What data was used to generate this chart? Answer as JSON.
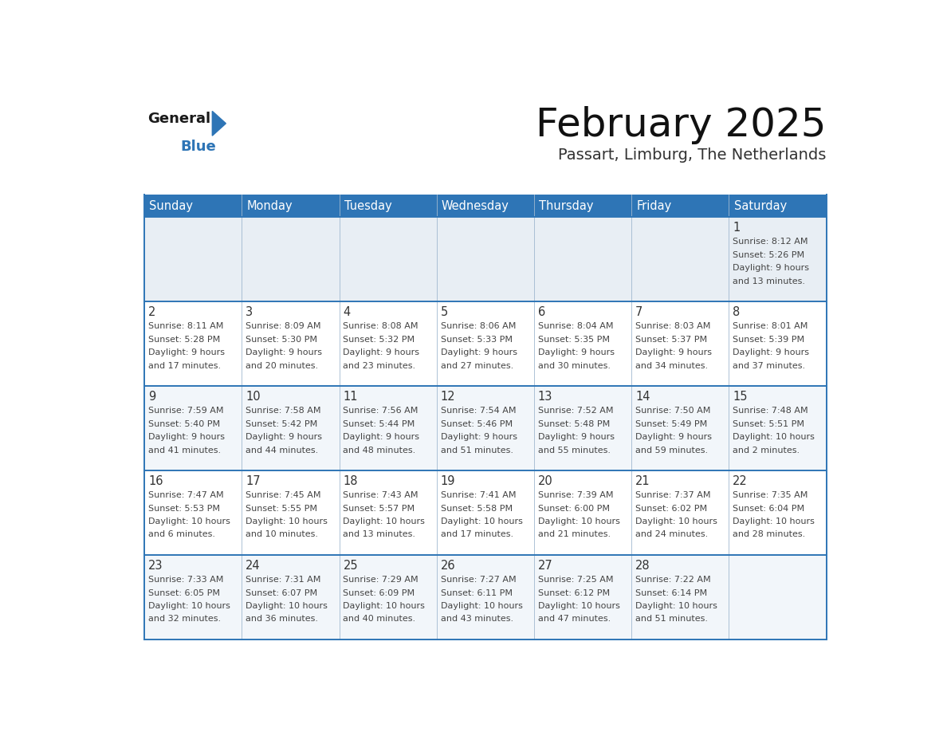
{
  "title": "February 2025",
  "subtitle": "Passart, Limburg, The Netherlands",
  "header_color": "#2e75b6",
  "header_text_color": "#ffffff",
  "day_names": [
    "Sunday",
    "Monday",
    "Tuesday",
    "Wednesday",
    "Thursday",
    "Friday",
    "Saturday"
  ],
  "background_color": "#ffffff",
  "row0_bg": "#e8eef4",
  "row_odd_bg": "#f2f6fa",
  "row_even_bg": "#ffffff",
  "border_color": "#2e75b6",
  "light_border_color": "#a0b8d0",
  "number_color": "#333333",
  "text_color": "#444444",
  "logo_black": "#1a1a1a",
  "logo_blue": "#2e75b6",
  "title_color": "#111111",
  "subtitle_color": "#333333",
  "calendar_data": [
    [
      null,
      null,
      null,
      null,
      null,
      null,
      {
        "day": 1,
        "sunrise": "8:12 AM",
        "sunset": "5:26 PM",
        "daylight": "9 hours and 13 minutes."
      }
    ],
    [
      {
        "day": 2,
        "sunrise": "8:11 AM",
        "sunset": "5:28 PM",
        "daylight": "9 hours and 17 minutes."
      },
      {
        "day": 3,
        "sunrise": "8:09 AM",
        "sunset": "5:30 PM",
        "daylight": "9 hours and 20 minutes."
      },
      {
        "day": 4,
        "sunrise": "8:08 AM",
        "sunset": "5:32 PM",
        "daylight": "9 hours and 23 minutes."
      },
      {
        "day": 5,
        "sunrise": "8:06 AM",
        "sunset": "5:33 PM",
        "daylight": "9 hours and 27 minutes."
      },
      {
        "day": 6,
        "sunrise": "8:04 AM",
        "sunset": "5:35 PM",
        "daylight": "9 hours and 30 minutes."
      },
      {
        "day": 7,
        "sunrise": "8:03 AM",
        "sunset": "5:37 PM",
        "daylight": "9 hours and 34 minutes."
      },
      {
        "day": 8,
        "sunrise": "8:01 AM",
        "sunset": "5:39 PM",
        "daylight": "9 hours and 37 minutes."
      }
    ],
    [
      {
        "day": 9,
        "sunrise": "7:59 AM",
        "sunset": "5:40 PM",
        "daylight": "9 hours and 41 minutes."
      },
      {
        "day": 10,
        "sunrise": "7:58 AM",
        "sunset": "5:42 PM",
        "daylight": "9 hours and 44 minutes."
      },
      {
        "day": 11,
        "sunrise": "7:56 AM",
        "sunset": "5:44 PM",
        "daylight": "9 hours and 48 minutes."
      },
      {
        "day": 12,
        "sunrise": "7:54 AM",
        "sunset": "5:46 PM",
        "daylight": "9 hours and 51 minutes."
      },
      {
        "day": 13,
        "sunrise": "7:52 AM",
        "sunset": "5:48 PM",
        "daylight": "9 hours and 55 minutes."
      },
      {
        "day": 14,
        "sunrise": "7:50 AM",
        "sunset": "5:49 PM",
        "daylight": "9 hours and 59 minutes."
      },
      {
        "day": 15,
        "sunrise": "7:48 AM",
        "sunset": "5:51 PM",
        "daylight": "10 hours and 2 minutes."
      }
    ],
    [
      {
        "day": 16,
        "sunrise": "7:47 AM",
        "sunset": "5:53 PM",
        "daylight": "10 hours and 6 minutes."
      },
      {
        "day": 17,
        "sunrise": "7:45 AM",
        "sunset": "5:55 PM",
        "daylight": "10 hours and 10 minutes."
      },
      {
        "day": 18,
        "sunrise": "7:43 AM",
        "sunset": "5:57 PM",
        "daylight": "10 hours and 13 minutes."
      },
      {
        "day": 19,
        "sunrise": "7:41 AM",
        "sunset": "5:58 PM",
        "daylight": "10 hours and 17 minutes."
      },
      {
        "day": 20,
        "sunrise": "7:39 AM",
        "sunset": "6:00 PM",
        "daylight": "10 hours and 21 minutes."
      },
      {
        "day": 21,
        "sunrise": "7:37 AM",
        "sunset": "6:02 PM",
        "daylight": "10 hours and 24 minutes."
      },
      {
        "day": 22,
        "sunrise": "7:35 AM",
        "sunset": "6:04 PM",
        "daylight": "10 hours and 28 minutes."
      }
    ],
    [
      {
        "day": 23,
        "sunrise": "7:33 AM",
        "sunset": "6:05 PM",
        "daylight": "10 hours and 32 minutes."
      },
      {
        "day": 24,
        "sunrise": "7:31 AM",
        "sunset": "6:07 PM",
        "daylight": "10 hours and 36 minutes."
      },
      {
        "day": 25,
        "sunrise": "7:29 AM",
        "sunset": "6:09 PM",
        "daylight": "10 hours and 40 minutes."
      },
      {
        "day": 26,
        "sunrise": "7:27 AM",
        "sunset": "6:11 PM",
        "daylight": "10 hours and 43 minutes."
      },
      {
        "day": 27,
        "sunrise": "7:25 AM",
        "sunset": "6:12 PM",
        "daylight": "10 hours and 47 minutes."
      },
      {
        "day": 28,
        "sunrise": "7:22 AM",
        "sunset": "6:14 PM",
        "daylight": "10 hours and 51 minutes."
      },
      null
    ]
  ]
}
